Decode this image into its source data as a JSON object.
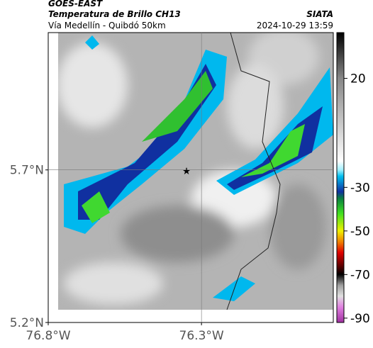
{
  "header": {
    "source": "GOES-EAST",
    "product": "Temperatura de Brillo CH13",
    "route": "Vía Medellín - Quibdó 50km",
    "agency": "SIATA",
    "datetime": "2024-10-29 13:59"
  },
  "map": {
    "lonlim": [
      -76.8,
      -75.87
    ],
    "latlim": [
      5.2,
      6.15
    ],
    "lonticks": [
      {
        "value": -76.8,
        "label": "76.8°W"
      },
      {
        "value": -76.3,
        "label": "76.3°W"
      }
    ],
    "latticks": [
      {
        "value": 5.7,
        "label": "5.7°N"
      },
      {
        "value": 5.2,
        "label": "5.2°N"
      }
    ]
  },
  "colorbar": {
    "range": [
      -92,
      41
    ],
    "ticks": [
      20,
      -30,
      -50,
      -70,
      -90
    ]
  }
}
